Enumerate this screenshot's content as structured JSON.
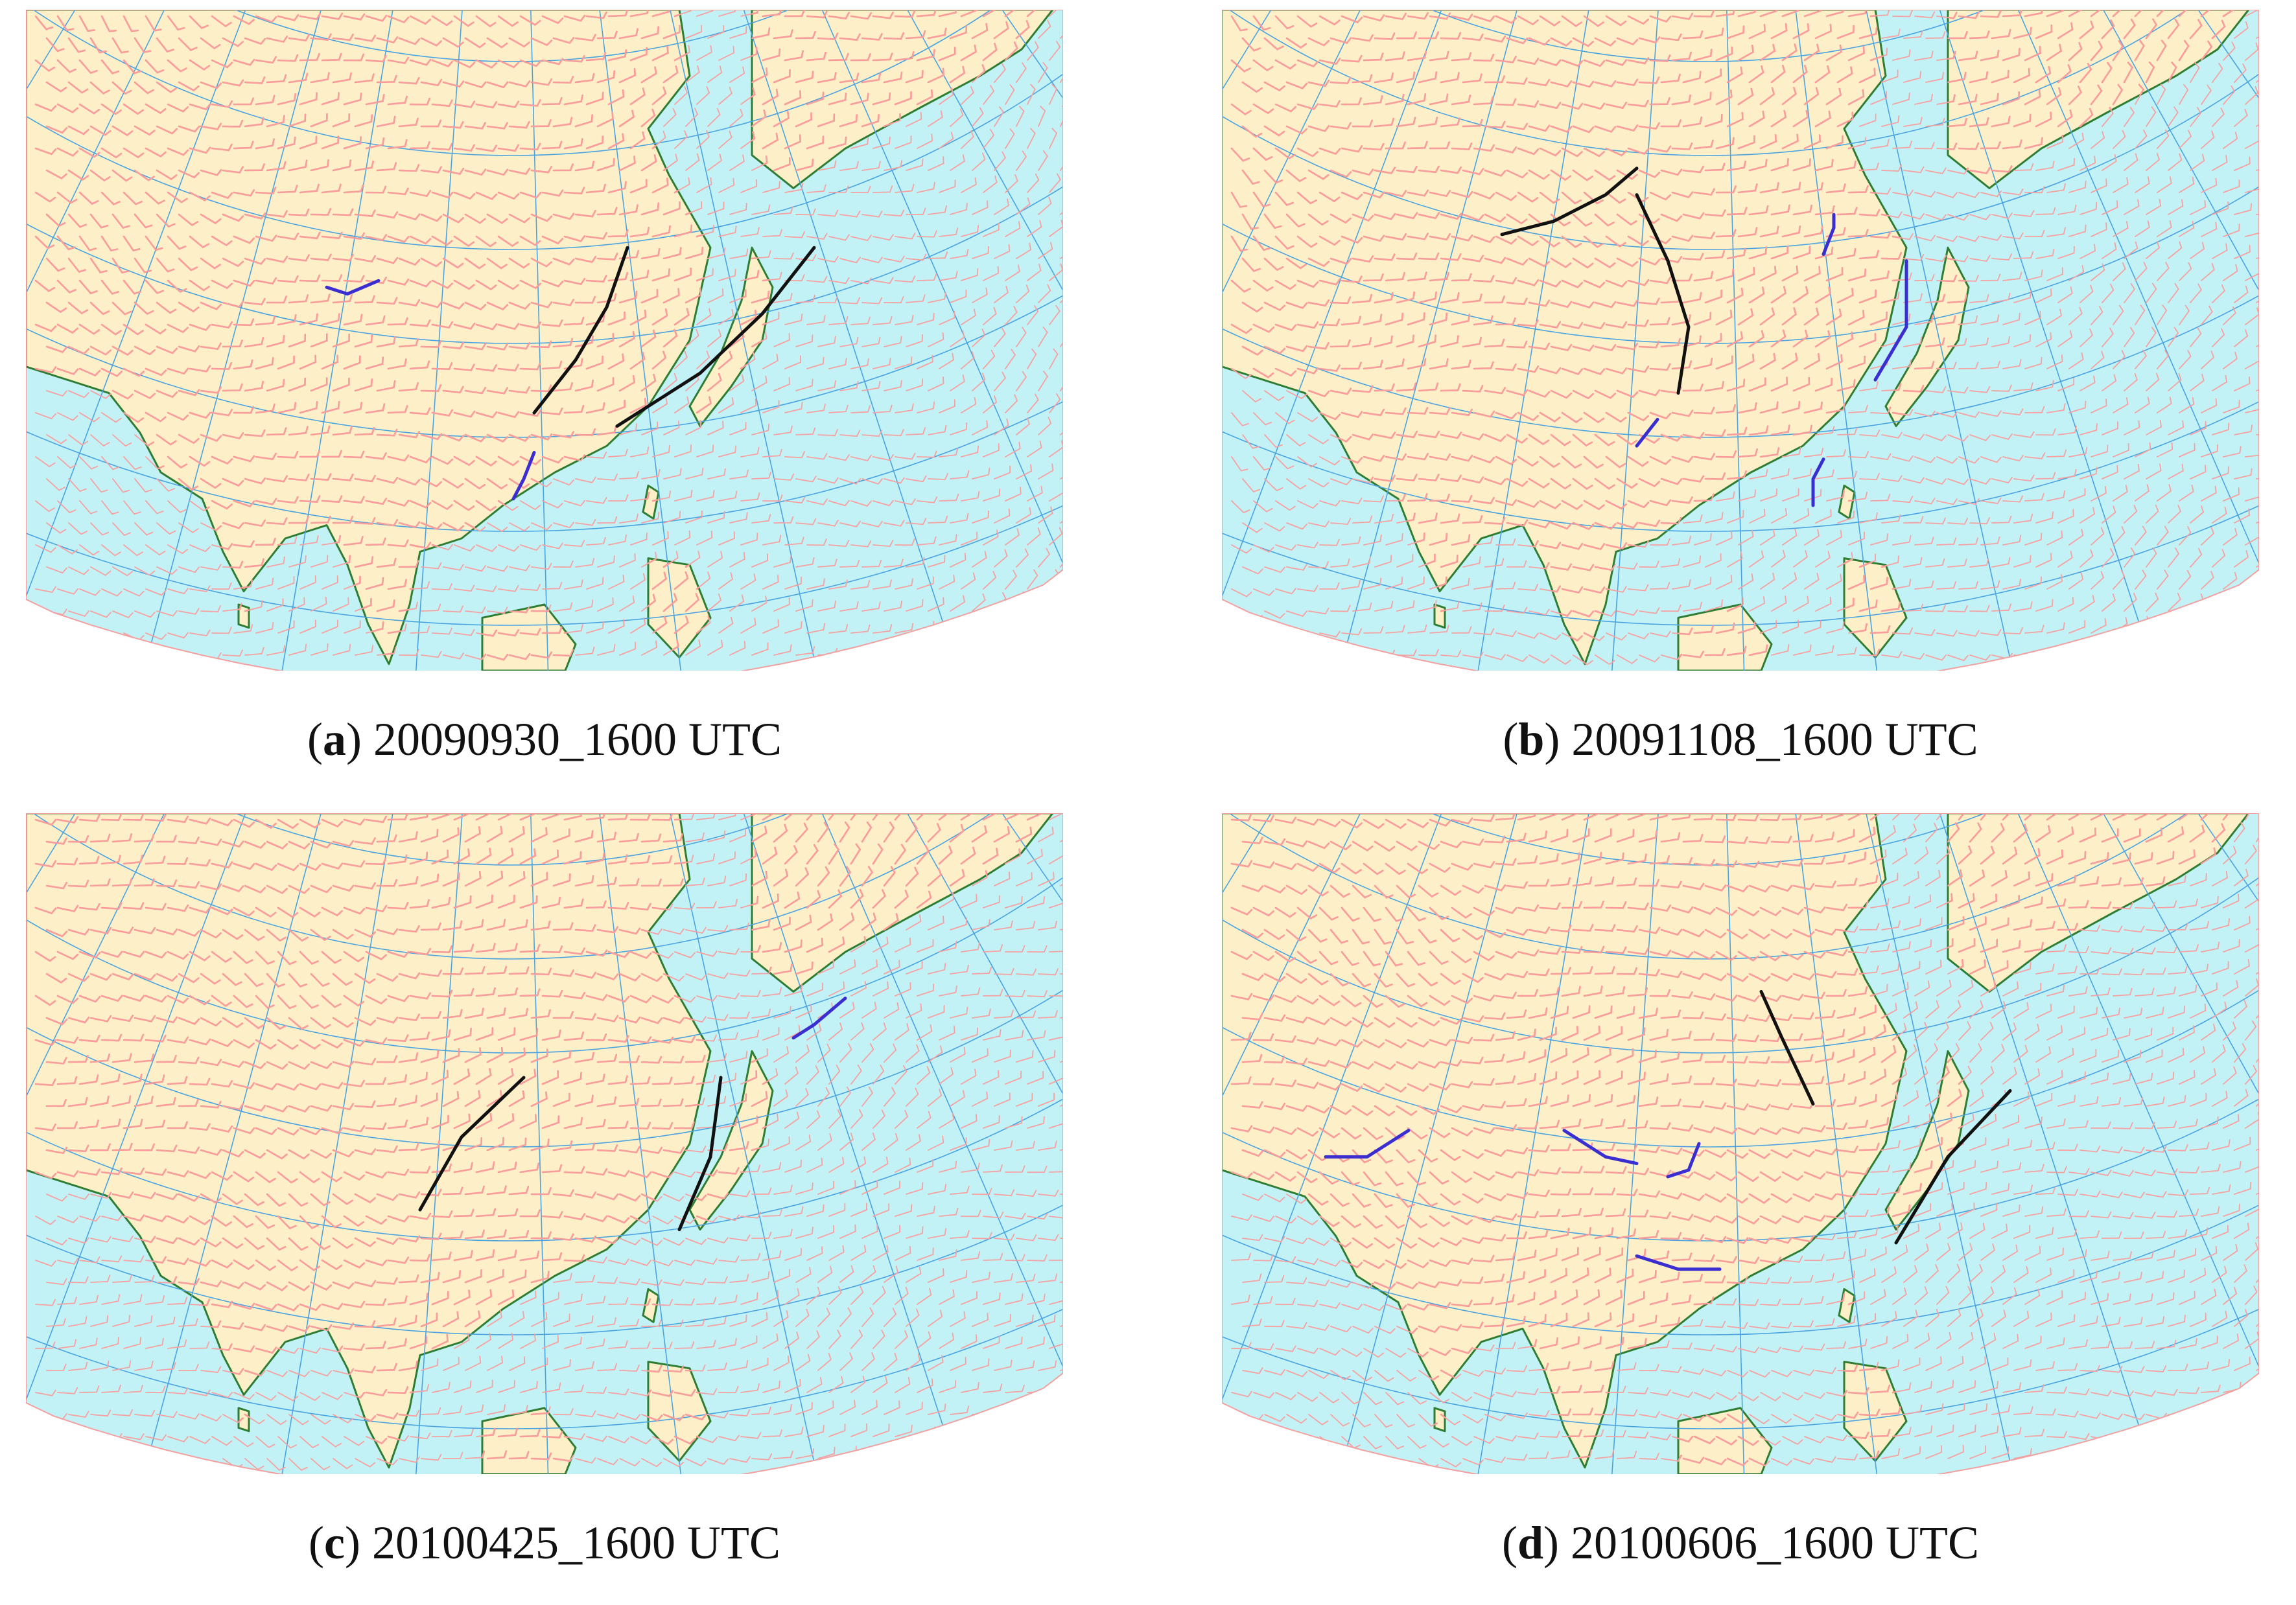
{
  "panels": [
    {
      "letter": "a",
      "timestamp": "20090930_1600 UTC",
      "troughs": [
        [
          [
            0.49,
            0.61
          ],
          [
            0.53,
            0.53
          ],
          [
            0.56,
            0.45
          ],
          [
            0.58,
            0.36
          ]
        ],
        [
          [
            0.57,
            0.63
          ],
          [
            0.65,
            0.55
          ],
          [
            0.71,
            0.46
          ],
          [
            0.76,
            0.36
          ]
        ]
      ],
      "shears": [
        [
          [
            0.29,
            0.42
          ],
          [
            0.31,
            0.43
          ],
          [
            0.34,
            0.41
          ]
        ],
        [
          [
            0.47,
            0.74
          ],
          [
            0.48,
            0.71
          ],
          [
            0.49,
            0.67
          ]
        ]
      ]
    },
    {
      "letter": "b",
      "timestamp": "20091108_1600 UTC",
      "troughs": [
        [
          [
            0.27,
            0.34
          ],
          [
            0.32,
            0.32
          ],
          [
            0.37,
            0.28
          ],
          [
            0.4,
            0.24
          ]
        ],
        [
          [
            0.44,
            0.58
          ],
          [
            0.45,
            0.48
          ],
          [
            0.43,
            0.38
          ],
          [
            0.4,
            0.28
          ]
        ]
      ],
      "shears": [
        [
          [
            0.4,
            0.66
          ],
          [
            0.41,
            0.64
          ],
          [
            0.42,
            0.62
          ]
        ],
        [
          [
            0.63,
            0.56
          ],
          [
            0.66,
            0.48
          ],
          [
            0.66,
            0.38
          ]
        ],
        [
          [
            0.58,
            0.37
          ],
          [
            0.59,
            0.33
          ],
          [
            0.59,
            0.31
          ]
        ],
        [
          [
            0.57,
            0.75
          ],
          [
            0.57,
            0.71
          ],
          [
            0.58,
            0.68
          ]
        ]
      ]
    },
    {
      "letter": "c",
      "timestamp": "20100425_1600 UTC",
      "troughs": [
        [
          [
            0.38,
            0.6
          ],
          [
            0.42,
            0.49
          ],
          [
            0.48,
            0.4
          ]
        ],
        [
          [
            0.63,
            0.63
          ],
          [
            0.66,
            0.52
          ],
          [
            0.67,
            0.4
          ]
        ]
      ],
      "shears": [
        [
          [
            0.74,
            0.34
          ],
          [
            0.76,
            0.32
          ],
          [
            0.79,
            0.28
          ]
        ]
      ]
    },
    {
      "letter": "d",
      "timestamp": "20100606_1600 UTC",
      "troughs": [
        [
          [
            0.52,
            0.27
          ],
          [
            0.54,
            0.34
          ],
          [
            0.57,
            0.44
          ]
        ],
        [
          [
            0.65,
            0.65
          ],
          [
            0.7,
            0.52
          ],
          [
            0.76,
            0.42
          ]
        ]
      ],
      "shears": [
        [
          [
            0.1,
            0.52
          ],
          [
            0.14,
            0.52
          ],
          [
            0.18,
            0.48
          ]
        ],
        [
          [
            0.33,
            0.48
          ],
          [
            0.37,
            0.52
          ],
          [
            0.4,
            0.53
          ]
        ],
        [
          [
            0.43,
            0.55
          ],
          [
            0.45,
            0.54
          ],
          [
            0.46,
            0.5
          ]
        ],
        [
          [
            0.4,
            0.67
          ],
          [
            0.44,
            0.69
          ],
          [
            0.48,
            0.69
          ]
        ]
      ]
    }
  ],
  "colors": {
    "ocean": "#c2f2f6",
    "land": "#fdf0c8",
    "wind_land": "#ff8a8a",
    "wind_sea": "#f7a0a0",
    "coast": "#2e7d32",
    "grid": "#4aa3e0",
    "trough": "#111111",
    "shear": "#3a2ed0"
  }
}
